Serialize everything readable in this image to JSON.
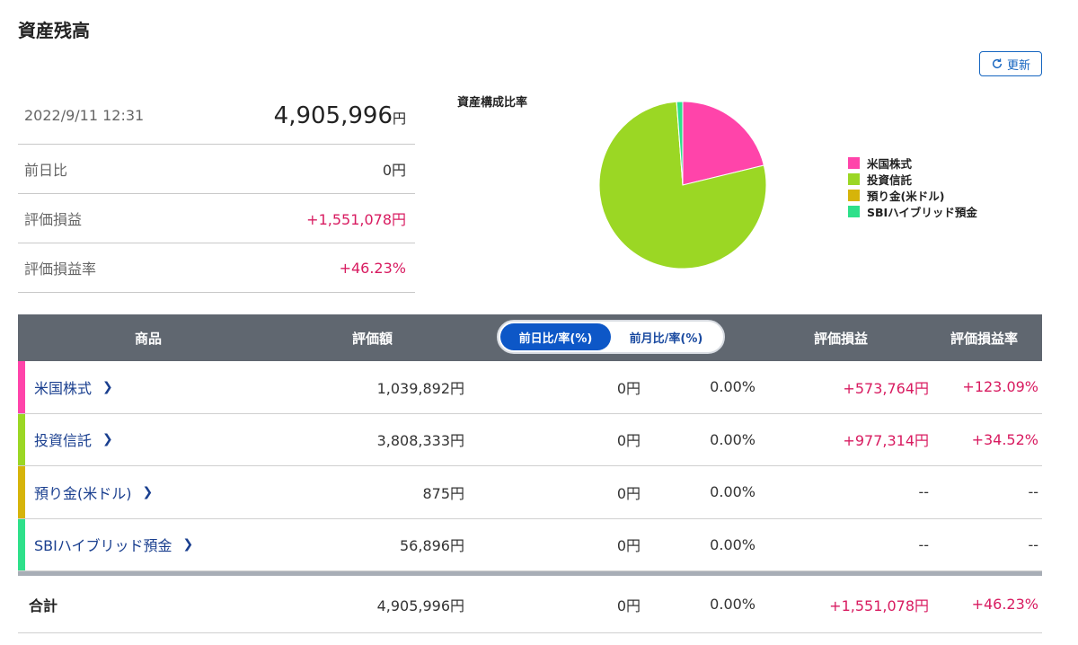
{
  "page_title": "資産残高",
  "refresh_label": "更新",
  "summary": {
    "timestamp": "2022/9/11 12:31",
    "total_value": "4,905,996",
    "total_unit": "円",
    "rows": [
      {
        "label": "前日比",
        "value": "0円"
      },
      {
        "label": "評価損益",
        "value": "+1,551,078円"
      },
      {
        "label": "評価損益率",
        "value": "+46.23%"
      }
    ]
  },
  "chart_data": {
    "type": "pie",
    "title": "資産構成比率",
    "categories": [
      "米国株式",
      "投資信託",
      "預り金(米ドル)",
      "SBIハイブリッド預金"
    ],
    "values": [
      1039892,
      3808333,
      875,
      56896
    ],
    "colors": [
      "#ff44aa",
      "#9bd724",
      "#d6b40a",
      "#2ee08a"
    ]
  },
  "table": {
    "headers": {
      "product": "商品",
      "valuation": "評価額",
      "toggle_active": "前日比/率(%)",
      "toggle_inactive": "前月比/率(%)",
      "gain": "評価損益",
      "gain_rate": "評価損益率"
    },
    "rows": [
      {
        "name": "米国株式",
        "valuation": "1,039,892円",
        "change": "0円",
        "change_rate": "0.00%",
        "gain": "+573,764円",
        "gain_rate": "+123.09%",
        "color": "#ff44aa"
      },
      {
        "name": "投資信託",
        "valuation": "3,808,333円",
        "change": "0円",
        "change_rate": "0.00%",
        "gain": "+977,314円",
        "gain_rate": "+34.52%",
        "color": "#9bd724"
      },
      {
        "name": "預り金(米ドル)",
        "valuation": "875円",
        "change": "0円",
        "change_rate": "0.00%",
        "gain": "--",
        "gain_rate": "--",
        "color": "#d6b40a"
      },
      {
        "name": "SBIハイブリッド預金",
        "valuation": "56,896円",
        "change": "0円",
        "change_rate": "0.00%",
        "gain": "--",
        "gain_rate": "--",
        "color": "#2ee08a"
      }
    ],
    "total": {
      "label": "合計",
      "valuation": "4,905,996円",
      "change": "0円",
      "change_rate": "0.00%",
      "gain": "+1,551,078円",
      "gain_rate": "+46.23%"
    }
  }
}
